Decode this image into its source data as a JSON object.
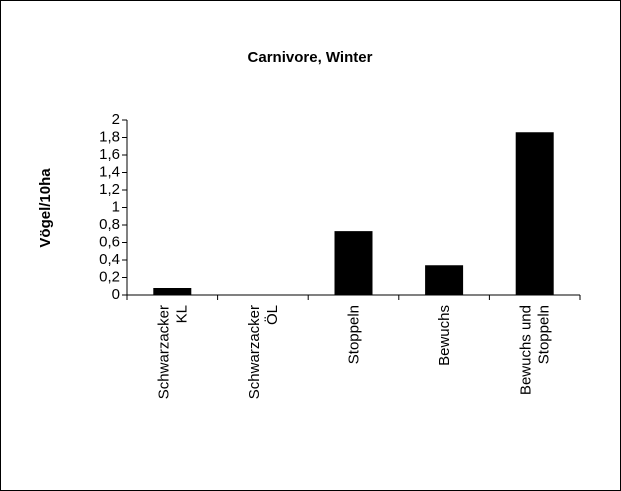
{
  "chart_data": {
    "type": "bar",
    "title": "Carnivore, Winter",
    "y_label": "Vögel/10ha",
    "categories": [
      [
        "Schwarzacker",
        "KL"
      ],
      [
        "Schwarzacker",
        "ÖL"
      ],
      [
        "Stoppeln"
      ],
      [
        "Bewuchs"
      ],
      [
        "Bewuchs und",
        "Stoppeln"
      ]
    ],
    "values": [
      0.08,
      0,
      0.73,
      0.34,
      1.86
    ],
    "color": "#000000",
    "ylim": [
      0,
      2
    ],
    "yticks": [
      0,
      {
        "value": 0.2,
        "label": "0,2"
      },
      {
        "value": 0.4,
        "label": "0,4"
      },
      {
        "value": 0.6,
        "label": "0,6"
      },
      {
        "value": 0.8,
        "label": "0,8"
      },
      1,
      {
        "value": 1.2,
        "label": "1,2"
      },
      {
        "value": 1.4,
        "label": "1,4"
      },
      {
        "value": 1.6,
        "label": "1,6"
      },
      {
        "value": 1.8,
        "label": "1,8"
      },
      2
    ],
    "grid": false
  }
}
